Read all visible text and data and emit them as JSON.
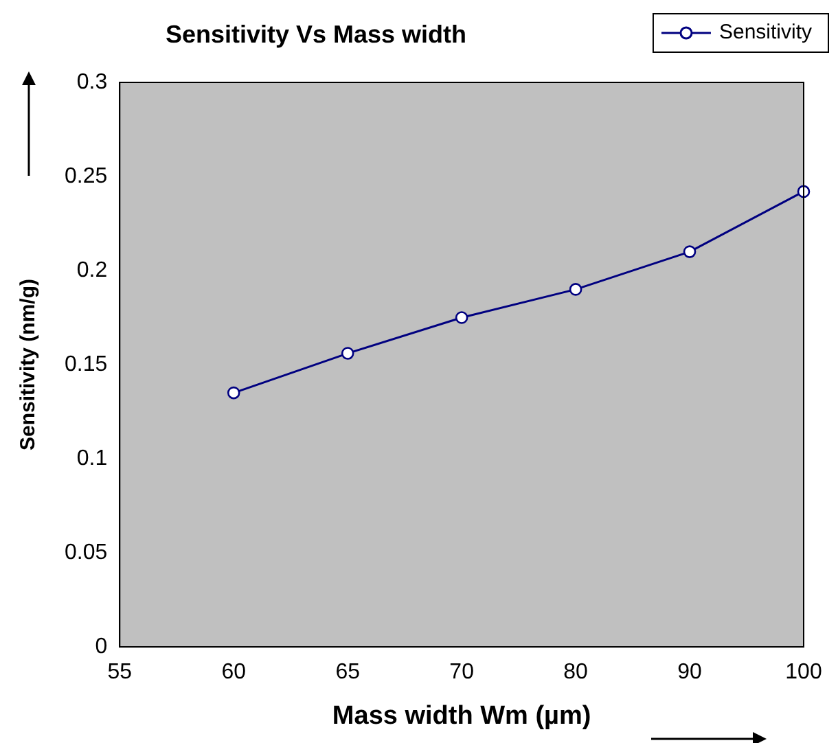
{
  "chart_data": {
    "type": "line",
    "title": "Sensitivity Vs Mass width",
    "xlabel": "Mass width Wm (µm)",
    "ylabel": "Sensitivity (nm/g)",
    "categories": [
      "55",
      "60",
      "65",
      "70",
      "80",
      "90",
      "100"
    ],
    "series": [
      {
        "name": "Sensitivity",
        "color": "#000080",
        "values": [
          null,
          0.135,
          0.156,
          0.175,
          0.19,
          0.21,
          0.242
        ]
      }
    ],
    "ylim": [
      0,
      0.3
    ],
    "yticks": [
      0,
      0.05,
      0.1,
      0.15,
      0.2,
      0.25,
      0.3
    ],
    "grid": false,
    "legend": "top right",
    "marker": "circle",
    "line_style": "solid"
  }
}
